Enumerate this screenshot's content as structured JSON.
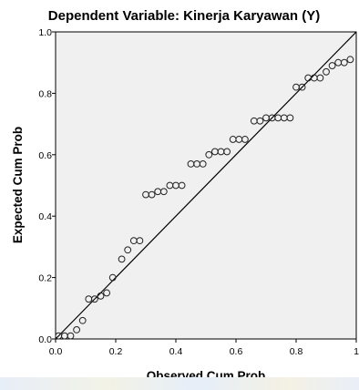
{
  "chart_data": {
    "type": "scatter",
    "title": "Dependent Variable: Kinerja Karyawan (Y)",
    "xlabel": "Observed Cum Prob",
    "ylabel": "Expected Cum Prob",
    "xlim": [
      0,
      1
    ],
    "ylim": [
      0,
      1
    ],
    "x_ticks": [
      {
        "value": 0.0,
        "label": "0.0"
      },
      {
        "value": 0.2,
        "label": "0.2"
      },
      {
        "value": 0.4,
        "label": "0.4"
      },
      {
        "value": 0.6,
        "label": "0.6"
      },
      {
        "value": 0.8,
        "label": "0.8"
      },
      {
        "value": 1.0,
        "label": "1"
      }
    ],
    "y_ticks": [
      {
        "value": 0.0,
        "label": "0.0"
      },
      {
        "value": 0.2,
        "label": "0.2"
      },
      {
        "value": 0.4,
        "label": "0.4"
      },
      {
        "value": 0.6,
        "label": "0.6"
      },
      {
        "value": 0.8,
        "label": "0.8"
      },
      {
        "value": 1.0,
        "label": "1.0"
      }
    ],
    "reference_line": {
      "from": [
        0,
        0
      ],
      "to": [
        1,
        1
      ]
    },
    "grid": false,
    "points": [
      {
        "x": 0.01,
        "y": 0.01
      },
      {
        "x": 0.03,
        "y": 0.01
      },
      {
        "x": 0.05,
        "y": 0.01
      },
      {
        "x": 0.07,
        "y": 0.03
      },
      {
        "x": 0.09,
        "y": 0.06
      },
      {
        "x": 0.11,
        "y": 0.13
      },
      {
        "x": 0.13,
        "y": 0.13
      },
      {
        "x": 0.15,
        "y": 0.14
      },
      {
        "x": 0.17,
        "y": 0.15
      },
      {
        "x": 0.19,
        "y": 0.2
      },
      {
        "x": 0.22,
        "y": 0.26
      },
      {
        "x": 0.24,
        "y": 0.29
      },
      {
        "x": 0.26,
        "y": 0.32
      },
      {
        "x": 0.28,
        "y": 0.32
      },
      {
        "x": 0.3,
        "y": 0.47
      },
      {
        "x": 0.32,
        "y": 0.47
      },
      {
        "x": 0.34,
        "y": 0.48
      },
      {
        "x": 0.36,
        "y": 0.48
      },
      {
        "x": 0.38,
        "y": 0.5
      },
      {
        "x": 0.4,
        "y": 0.5
      },
      {
        "x": 0.42,
        "y": 0.5
      },
      {
        "x": 0.45,
        "y": 0.57
      },
      {
        "x": 0.47,
        "y": 0.57
      },
      {
        "x": 0.49,
        "y": 0.57
      },
      {
        "x": 0.51,
        "y": 0.6
      },
      {
        "x": 0.53,
        "y": 0.61
      },
      {
        "x": 0.55,
        "y": 0.61
      },
      {
        "x": 0.57,
        "y": 0.61
      },
      {
        "x": 0.59,
        "y": 0.65
      },
      {
        "x": 0.61,
        "y": 0.65
      },
      {
        "x": 0.63,
        "y": 0.65
      },
      {
        "x": 0.66,
        "y": 0.71
      },
      {
        "x": 0.68,
        "y": 0.71
      },
      {
        "x": 0.7,
        "y": 0.72
      },
      {
        "x": 0.72,
        "y": 0.72
      },
      {
        "x": 0.74,
        "y": 0.72
      },
      {
        "x": 0.76,
        "y": 0.72
      },
      {
        "x": 0.78,
        "y": 0.72
      },
      {
        "x": 0.8,
        "y": 0.82
      },
      {
        "x": 0.82,
        "y": 0.82
      },
      {
        "x": 0.84,
        "y": 0.85
      },
      {
        "x": 0.86,
        "y": 0.85
      },
      {
        "x": 0.88,
        "y": 0.85
      },
      {
        "x": 0.9,
        "y": 0.87
      },
      {
        "x": 0.92,
        "y": 0.89
      },
      {
        "x": 0.94,
        "y": 0.9
      },
      {
        "x": 0.96,
        "y": 0.9
      },
      {
        "x": 0.98,
        "y": 0.91
      }
    ],
    "colors": {
      "plot_background": "#f0f0f0",
      "marker_stroke": "#222222",
      "line": "#000000"
    }
  }
}
